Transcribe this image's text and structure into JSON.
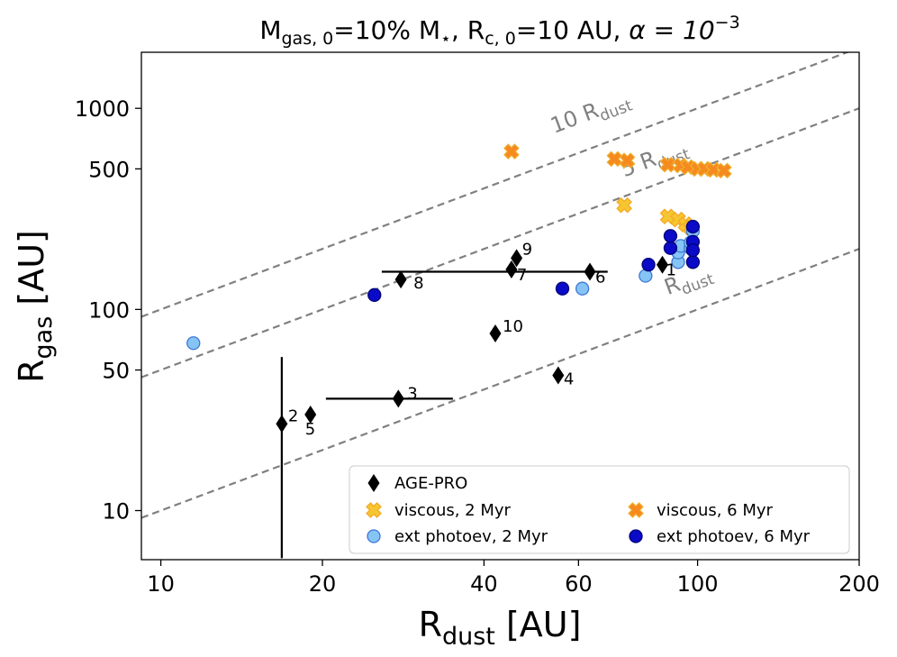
{
  "chart_data": {
    "type": "scatter",
    "title": {
      "m_main": "M",
      "m_sub": "gas, 0",
      "m_mid": "=10% M",
      "m_star": "⋆",
      "r_main": ",   R",
      "r_sub": "c, 0",
      "r_end": "=10 AU,   ",
      "alpha": "α = 10",
      "alpha_exp": "−3"
    },
    "xlabel": {
      "main": "R",
      "sub": "dust",
      "unit": " [AU]"
    },
    "ylabel": {
      "main": "R",
      "sub": "gas",
      "unit": " [AU]"
    },
    "xscale": "log",
    "yscale": "log",
    "xlim": [
      9.2,
      200
    ],
    "ylim": [
      5.7,
      1900
    ],
    "xticks": [
      10,
      20,
      40,
      60,
      100,
      200
    ],
    "xtick_labels": [
      "10",
      "20",
      "40",
      "60",
      "100",
      "200"
    ],
    "yticks": [
      10,
      50,
      100,
      500,
      1000
    ],
    "ytick_labels": [
      "10",
      "50",
      "100",
      "500",
      "1000"
    ],
    "grid": false,
    "reference_lines": [
      {
        "factor": 1,
        "label": "R",
        "label_sub": "dust",
        "label_x": 88,
        "label_y": 118
      },
      {
        "factor": 5,
        "label": "5 R",
        "label_sub": "dust",
        "label_x": 73,
        "label_y": 455
      },
      {
        "factor": 10,
        "label": "10 R",
        "label_sub": "dust",
        "label_x": 54,
        "label_y": 750
      }
    ],
    "agepro": [
      {
        "x": 16.8,
        "y": 27,
        "label": "2",
        "yerr": [
          5.8,
          58
        ]
      },
      {
        "x": 19,
        "y": 30,
        "label": "5"
      },
      {
        "x": 27.7,
        "y": 36,
        "label": "3",
        "xerr": [
          20.3,
          35
        ]
      },
      {
        "x": 42,
        "y": 76,
        "label": "10"
      },
      {
        "x": 55,
        "y": 47,
        "label": "4"
      },
      {
        "x": 28,
        "y": 141,
        "label": "8"
      },
      {
        "x": 45,
        "y": 158,
        "label": "7"
      },
      {
        "x": 46,
        "y": 180,
        "label": "9"
      },
      {
        "x": 63,
        "y": 154,
        "label": "6",
        "xerr": [
          25.8,
          68
        ]
      },
      {
        "x": 86,
        "y": 167,
        "label": "1"
      }
    ],
    "series": [
      {
        "name": "viscous, 2 Myr",
        "marker": "x",
        "color": "#f5c630",
        "edge": "#f5a623",
        "x": [
          73,
          88,
          92,
          95,
          97
        ],
        "y": [
          330,
          290,
          280,
          265,
          255
        ]
      },
      {
        "name": "viscous, 6 Myr",
        "marker": "x",
        "color": "#f58a1f",
        "edge": "#f0b030",
        "x": [
          45,
          70,
          74,
          88,
          93,
          96,
          100,
          103,
          107,
          112
        ],
        "y": [
          610,
          560,
          550,
          525,
          520,
          510,
          500,
          500,
          495,
          490
        ]
      },
      {
        "name": "ext photoev, 2 Myr",
        "marker": "o",
        "color": "#86c4f5",
        "edge": "#3d78d6",
        "x": [
          11.5,
          61,
          80,
          92,
          92,
          93,
          97,
          97,
          98
        ],
        "y": [
          68,
          127,
          147,
          172,
          192,
          207,
          202,
          215,
          245
        ]
      },
      {
        "name": "ext photoev, 6 Myr",
        "marker": "o",
        "color": "#0a0ac8",
        "edge": "#03037a",
        "x": [
          25,
          56,
          81,
          89,
          89,
          98,
          98,
          98,
          98
        ],
        "y": [
          118,
          127,
          167,
          202,
          232,
          172,
          217,
          197,
          258
        ]
      }
    ],
    "legend": {
      "placement": "lower right",
      "agepro_label": "AGE-PRO"
    }
  }
}
